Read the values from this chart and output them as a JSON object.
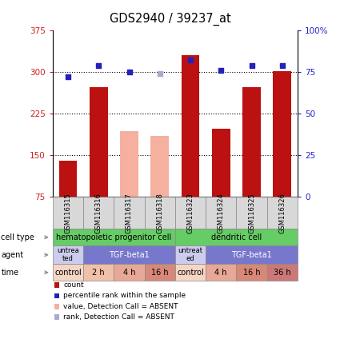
{
  "title": "GDS2940 / 39237_at",
  "samples": [
    "GSM116315",
    "GSM116316",
    "GSM116317",
    "GSM116318",
    "GSM116323",
    "GSM116324",
    "GSM116325",
    "GSM116326"
  ],
  "bar_values": [
    140,
    272,
    193,
    185,
    330,
    198,
    272,
    302
  ],
  "bar_absent": [
    false,
    false,
    true,
    true,
    false,
    false,
    false,
    false
  ],
  "dot_values_pct": [
    72,
    79,
    75,
    74,
    82,
    76,
    79,
    79
  ],
  "dot_absent": [
    false,
    false,
    false,
    true,
    false,
    false,
    false,
    false
  ],
  "ylim_left": [
    75,
    375
  ],
  "ylim_right": [
    0,
    100
  ],
  "yticks_left": [
    75,
    150,
    225,
    300,
    375
  ],
  "yticks_right": [
    0,
    25,
    50,
    75,
    100
  ],
  "bar_color_present": "#bb1111",
  "bar_color_absent": "#f5b0a0",
  "dot_color_present": "#2222bb",
  "dot_color_absent": "#aaaacc",
  "cell_type_color": "#66cc66",
  "agent_color_untreated": "#ccccee",
  "agent_color_tgf": "#7777cc",
  "time_colors": [
    "#f5d5c5",
    "#f0c0a8",
    "#e8a898",
    "#d88878",
    "#f5d5c5",
    "#e8a898",
    "#d88878",
    "#cc7878"
  ],
  "bg_color": "#d8d8d8",
  "plot_bg": "#ffffff",
  "label_color_left": "#cc2222",
  "label_color_right": "#2222cc",
  "grid_yticks": [
    150,
    225,
    300
  ],
  "time_row": [
    "control",
    "2 h",
    "4 h",
    "16 h",
    "control",
    "4 h",
    "16 h",
    "36 h"
  ],
  "agent_row_labels": [
    "untrea-\nted",
    "TGF-beta1",
    "untreat-\ned",
    "TGF-beta1"
  ],
  "agent_spans": [
    1,
    3,
    1,
    3
  ],
  "cell_type_labels": [
    "hematopoietic progenitor cell",
    "dendritic cell"
  ],
  "cell_type_spans": [
    4,
    4
  ],
  "legend_items": [
    [
      "#bb1111",
      "count"
    ],
    [
      "#2222bb",
      "percentile rank within the sample"
    ],
    [
      "#f5b0a0",
      "value, Detection Call = ABSENT"
    ],
    [
      "#aaaacc",
      "rank, Detection Call = ABSENT"
    ]
  ]
}
